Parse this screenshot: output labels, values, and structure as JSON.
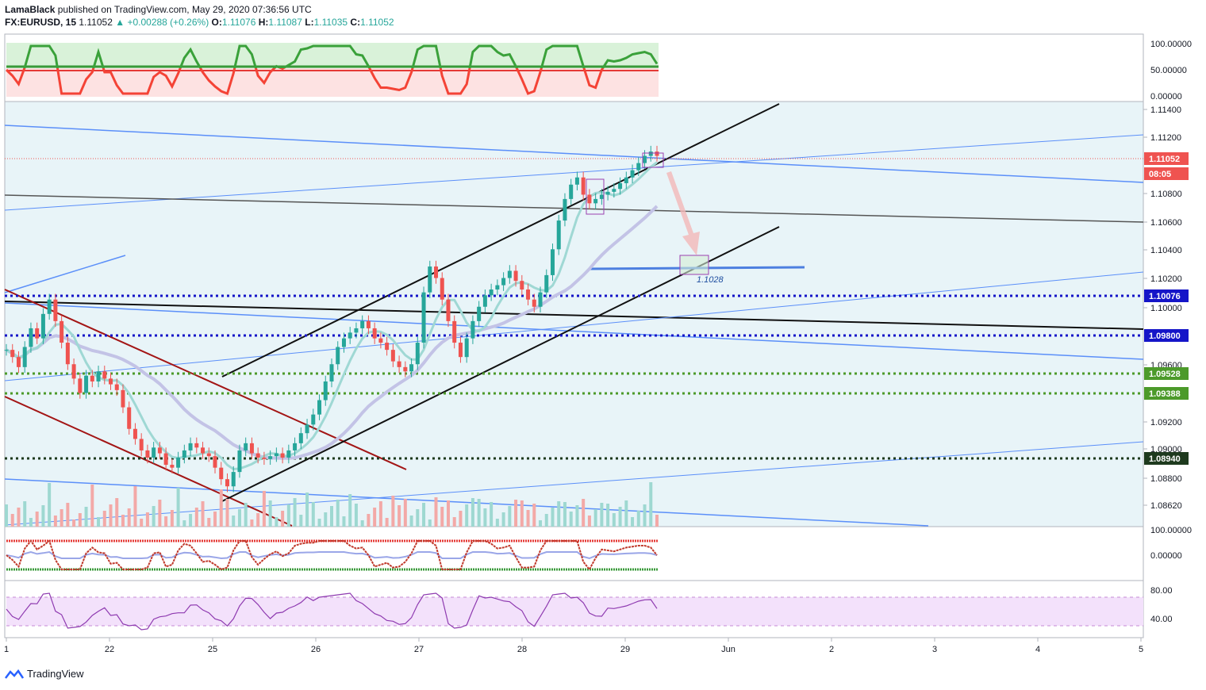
{
  "header": {
    "author": "LamaBlack",
    "published_text": "published on TradingView.com, May 29, 2020 07:36:56 UTC",
    "symbol": "FX:EURUSD, 15",
    "last": "1.11052",
    "change": "+0.00288 (+0.26%)",
    "o_label": "O:",
    "o": "1.11076",
    "h_label": "H:",
    "h": "1.11087",
    "l_label": "L:",
    "l": "1.11035",
    "c_label": "C:",
    "c": "1.11052"
  },
  "footer": {
    "brand": "TradingView",
    "icon": "tradingview-logo-icon"
  },
  "colors": {
    "bull": "#26a69a",
    "bear": "#ef5350",
    "blue_line": "#5b8ff9",
    "dark_red": "#a31515",
    "dotted_blue": "#1515c8",
    "dotted_green": "#4c9a2a",
    "price_tag": "#ef5350",
    "panel_bg": "#e8f4f8"
  },
  "chart_data": [
    {
      "type": "line",
      "title": "",
      "description": "EURUSD 15-minute candlestick price chart",
      "x_ticks": [
        "1",
        "22",
        "25",
        "26",
        "27",
        "28",
        "29",
        "Jun",
        "2",
        "3",
        "4",
        "5"
      ],
      "y_ticks": [
        "1.11400",
        "1.11200",
        "1.10800",
        "1.10600",
        "1.10400",
        "1.10200",
        "1.10000",
        "1.09600",
        "1.09200",
        "1.09000",
        "1.08800",
        "1.08620"
      ],
      "ylim": [
        1.085,
        1.115
      ],
      "price_tags": [
        {
          "label": "1.11052",
          "value": 1.11052,
          "color": "#ef5350"
        },
        {
          "label": "08:05",
          "value": 1.10952,
          "color": "#ef5350"
        },
        {
          "label": "1.10076",
          "value": 1.10076,
          "color": "#1515c8"
        },
        {
          "label": "1.09800",
          "value": 1.098,
          "color": "#1515c8"
        },
        {
          "label": "1.09528",
          "value": 1.09528,
          "color": "#4c9a2a"
        },
        {
          "label": "1.09388",
          "value": 1.09388,
          "color": "#4c9a2a"
        },
        {
          "label": "1.08940",
          "value": 1.0894,
          "color": "#1e3a1e"
        }
      ],
      "horizontal_levels": [
        {
          "value": 1.10076,
          "style": "dotted",
          "color": "#1515c8"
        },
        {
          "value": 1.098,
          "style": "dotted",
          "color": "#1515c8"
        },
        {
          "value": 1.09528,
          "style": "dotted",
          "color": "#4c9a2a"
        },
        {
          "value": 1.09388,
          "style": "dotted",
          "color": "#4c9a2a"
        },
        {
          "value": 1.0894,
          "style": "dotted",
          "color": "#1e3a1e"
        }
      ],
      "annotation": {
        "label": "1.1028",
        "value": 1.1028
      },
      "close_series": [
        1.097,
        1.0965,
        1.0958,
        1.0972,
        1.0985,
        1.0978,
        1.0995,
        1.1005,
        1.099,
        1.0975,
        1.096,
        1.095,
        1.094,
        1.0952,
        1.0948,
        1.0955,
        1.095,
        1.0946,
        1.0942,
        1.093,
        1.0915,
        1.0908,
        1.09,
        1.0895,
        1.0902,
        1.0898,
        1.089,
        1.0888,
        1.0895,
        1.09,
        1.0905,
        1.0902,
        1.0898,
        1.0896,
        1.0888,
        1.088,
        1.0875,
        1.0885,
        1.09,
        1.0905,
        1.0898,
        1.0895,
        1.0894,
        1.0896,
        1.0898,
        1.0895,
        1.09,
        1.0905,
        1.0912,
        1.0918,
        1.0925,
        1.0935,
        1.0948,
        1.096,
        1.0972,
        1.0978,
        1.0982,
        1.0985,
        1.099,
        1.0985,
        1.0978,
        1.0975,
        1.097,
        1.0962,
        1.0958,
        1.0955,
        1.096,
        1.0975,
        1.101,
        1.1028,
        1.102,
        1.1005,
        1.099,
        1.0975,
        1.0965,
        1.0978,
        1.099,
        1.1,
        1.1008,
        1.1012,
        1.1015,
        1.102,
        1.1025,
        1.1018,
        1.1012,
        1.1005,
        1.1,
        1.101,
        1.1022,
        1.104,
        1.106,
        1.1075,
        1.1085,
        1.109,
        1.1078,
        1.1072,
        1.1075,
        1.1078,
        1.108,
        1.1082,
        1.1086,
        1.109,
        1.1095,
        1.11,
        1.1105,
        1.1108,
        1.1105
      ]
    },
    {
      "type": "line",
      "title": "",
      "description": "Top oscillator panel (stochastic-style)",
      "y_ticks": [
        "100.00000",
        "50.00000",
        "0.00000"
      ],
      "ylim": [
        0,
        100
      ]
    },
    {
      "type": "line",
      "title": "",
      "description": "Middle oscillator panel",
      "y_ticks": [
        "100.00000",
        "0.00000"
      ],
      "ylim": [
        -100,
        100
      ]
    },
    {
      "type": "line",
      "title": "",
      "description": "RSI-style panel",
      "y_ticks": [
        "80.00",
        "40.00"
      ],
      "ylim": [
        20,
        90
      ]
    }
  ]
}
